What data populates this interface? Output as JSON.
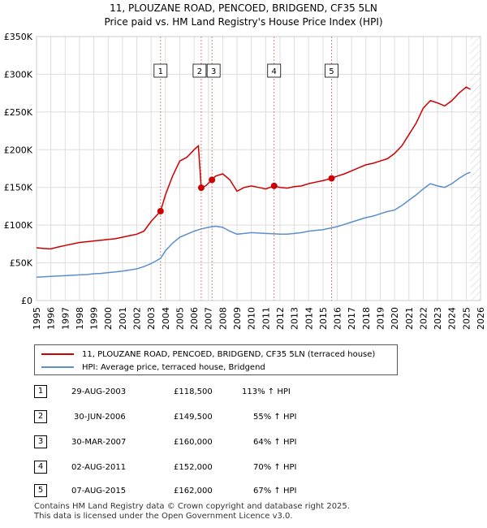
{
  "chart_data": {
    "type": "line",
    "title": "11, PLOUZANE ROAD, PENCOED, BRIDGEND, CF35 5LN",
    "subtitle": "Price paid vs. HM Land Registry's House Price Index (HPI)",
    "xlim": [
      1995,
      2026
    ],
    "ylim": [
      0,
      350000
    ],
    "x_ticks": [
      "1995",
      "1996",
      "1997",
      "1998",
      "1999",
      "2000",
      "2001",
      "2002",
      "2003",
      "2004",
      "2005",
      "2006",
      "2007",
      "2008",
      "2009",
      "2010",
      "2011",
      "2012",
      "2013",
      "2014",
      "2015",
      "2016",
      "2017",
      "2018",
      "2019",
      "2020",
      "2021",
      "2022",
      "2023",
      "2024",
      "2025",
      "2026"
    ],
    "y_ticks": [
      {
        "value": 0,
        "label": "£0"
      },
      {
        "value": 50000,
        "label": "£50K"
      },
      {
        "value": 100000,
        "label": "£100K"
      },
      {
        "value": 150000,
        "label": "£150K"
      },
      {
        "value": 200000,
        "label": "£200K"
      },
      {
        "value": 250000,
        "label": "£250K"
      },
      {
        "value": 300000,
        "label": "£300K"
      },
      {
        "value": 350000,
        "label": "£350K"
      }
    ],
    "grid": true,
    "series": [
      {
        "name": "11, PLOUZANE ROAD, PENCOED, BRIDGEND, CF35 5LN (terraced house)",
        "color": "#cc0000",
        "x": [
          1995.0,
          1995.5,
          1996.0,
          1996.5,
          1997.0,
          1997.5,
          1998.0,
          1998.5,
          1999.0,
          1999.5,
          2000.0,
          2000.5,
          2001.0,
          2001.5,
          2002.0,
          2002.5,
          2003.0,
          2003.66,
          2004.0,
          2004.5,
          2005.0,
          2005.5,
          2006.0,
          2006.3,
          2006.5,
          2006.8,
          2007.25,
          2007.5,
          2008.0,
          2008.5,
          2009.0,
          2009.5,
          2010.0,
          2010.5,
          2011.0,
          2011.59,
          2012.0,
          2012.5,
          2013.0,
          2013.5,
          2014.0,
          2014.5,
          2015.0,
          2015.6,
          2016.0,
          2016.5,
          2017.0,
          2017.5,
          2018.0,
          2018.5,
          2019.0,
          2019.5,
          2020.0,
          2020.5,
          2021.0,
          2021.5,
          2022.0,
          2022.5,
          2023.0,
          2023.5,
          2024.0,
          2024.5,
          2025.0,
          2025.3
        ],
        "values": [
          70000,
          69000,
          68500,
          71000,
          73000,
          75000,
          77000,
          78000,
          79000,
          80000,
          81000,
          82000,
          84000,
          86000,
          88000,
          92000,
          105000,
          118500,
          140000,
          165000,
          185000,
          190000,
          200000,
          205000,
          149500,
          152000,
          160000,
          165000,
          168000,
          160000,
          145000,
          150000,
          152000,
          150000,
          148000,
          152000,
          150000,
          149000,
          151000,
          152000,
          155000,
          157000,
          159000,
          162000,
          165000,
          168000,
          172000,
          176000,
          180000,
          182000,
          185000,
          188000,
          195000,
          205000,
          220000,
          235000,
          255000,
          265000,
          262000,
          258000,
          265000,
          275000,
          283000,
          280000
        ]
      },
      {
        "name": "HPI: Average price, terraced house, Bridgend",
        "color": "#5b8ecb",
        "x": [
          1995.0,
          1995.5,
          1996.0,
          1996.5,
          1997.0,
          1997.5,
          1998.0,
          1998.5,
          1999.0,
          1999.5,
          2000.0,
          2000.5,
          2001.0,
          2001.5,
          2002.0,
          2002.5,
          2003.0,
          2003.66,
          2004.0,
          2004.5,
          2005.0,
          2005.5,
          2006.0,
          2006.5,
          2007.0,
          2007.5,
          2008.0,
          2008.5,
          2009.0,
          2009.5,
          2010.0,
          2010.5,
          2011.0,
          2011.5,
          2012.0,
          2012.5,
          2013.0,
          2013.5,
          2014.0,
          2014.5,
          2015.0,
          2015.5,
          2016.0,
          2016.5,
          2017.0,
          2017.5,
          2018.0,
          2018.5,
          2019.0,
          2019.5,
          2020.0,
          2020.5,
          2021.0,
          2021.5,
          2022.0,
          2022.5,
          2023.0,
          2023.5,
          2024.0,
          2024.5,
          2025.0,
          2025.3
        ],
        "values": [
          31000,
          31500,
          32000,
          32500,
          33000,
          33500,
          34000,
          34500,
          35500,
          36000,
          37000,
          38000,
          39000,
          40500,
          42000,
          45000,
          49000,
          56000,
          66000,
          76000,
          84000,
          88000,
          92000,
          95000,
          97000,
          98500,
          97000,
          92000,
          88000,
          89000,
          90000,
          89500,
          89000,
          88500,
          88000,
          88000,
          89000,
          90000,
          92000,
          93000,
          94000,
          96000,
          98000,
          101000,
          104000,
          107000,
          110000,
          112000,
          115000,
          118000,
          120000,
          126000,
          133000,
          140000,
          148000,
          155000,
          152000,
          150000,
          155000,
          162000,
          168000,
          170000
        ]
      }
    ],
    "sales": [
      {
        "label": "1",
        "date": "29-AUG-2003",
        "x": 2003.66,
        "price_value": 118500
      },
      {
        "label": "2",
        "date": "30-JUN-2006",
        "x": 2006.5,
        "price_value": 149500
      },
      {
        "label": "3",
        "date": "30-MAR-2007",
        "x": 2007.25,
        "price_value": 160000
      },
      {
        "label": "4",
        "date": "02-AUG-2011",
        "x": 2011.59,
        "price_value": 152000
      },
      {
        "label": "5",
        "date": "07-AUG-2015",
        "x": 2015.6,
        "price_value": 162000
      }
    ],
    "shaded_future_from": 2025.3
  },
  "legend": {
    "property_label": "11, PLOUZANE ROAD, PENCOED, BRIDGEND, CF35 5LN (terraced house)",
    "hpi_label": "HPI: Average price, terraced house, Bridgend"
  },
  "table": [
    {
      "num": "1",
      "date": "29-AUG-2003",
      "price": "£118,500",
      "hpi": "113% ↑ HPI"
    },
    {
      "num": "2",
      "date": "30-JUN-2006",
      "price": "£149,500",
      "hpi": "55% ↑ HPI"
    },
    {
      "num": "3",
      "date": "30-MAR-2007",
      "price": "£160,000",
      "hpi": "64% ↑ HPI"
    },
    {
      "num": "4",
      "date": "02-AUG-2011",
      "price": "£152,000",
      "hpi": "70% ↑ HPI"
    },
    {
      "num": "5",
      "date": "07-AUG-2015",
      "price": "£162,000",
      "hpi": "67% ↑ HPI"
    }
  ],
  "footer": {
    "line1": "Contains HM Land Registry data © Crown copyright and database right 2025.",
    "line2": "This data is licensed under the Open Government Licence v3.0."
  },
  "colors": {
    "property": "#cc0000",
    "hpi": "#5b8ecb",
    "grid": "#dddddd",
    "vline": "#d98080"
  }
}
